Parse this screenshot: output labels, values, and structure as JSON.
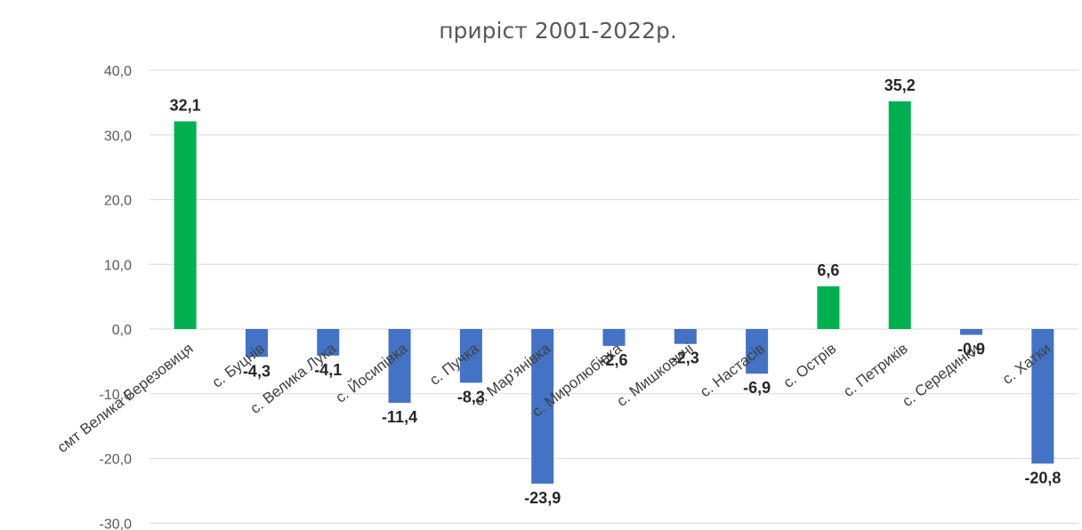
{
  "chart_data": {
    "type": "bar",
    "title": "приріст 2001-2022р.",
    "xlabel": "",
    "ylabel": "",
    "categories": [
      "смт Велика Березовиця",
      "с. Буцнів",
      "с. Велика Лука",
      "с. Йосипівка",
      "с. Пучка",
      "с. Мар'янівка",
      "с. Миролюбівка",
      "с. Мишковичі",
      "с. Настасів",
      "с. Острів",
      "с. Петриків",
      "с. Серединки",
      "с. Хатки"
    ],
    "values": [
      32.1,
      -4.3,
      -4.1,
      -11.4,
      -8.3,
      -23.9,
      -2.6,
      -2.3,
      -6.9,
      6.6,
      35.2,
      -0.9,
      -20.8
    ],
    "value_labels": [
      "32,1",
      "-4,3",
      "-4,1",
      "-11,4",
      "-8,3",
      "-23,9",
      "-2,6",
      "-2,3",
      "-6,9",
      "6,6",
      "35,2",
      "-0,9",
      "-20,8"
    ],
    "ylim": [
      -30,
      40
    ],
    "yticks": [
      40,
      30,
      20,
      10,
      0,
      -10,
      -20,
      -30
    ],
    "ytick_labels": [
      "40,0",
      "30,0",
      "20,0",
      "10,0",
      "0,0",
      "-10,0",
      "-20,0",
      "-30,0"
    ],
    "grid": true,
    "legend": "none",
    "colors": {
      "positive": "#00b050",
      "negative": "#4472c4"
    }
  }
}
